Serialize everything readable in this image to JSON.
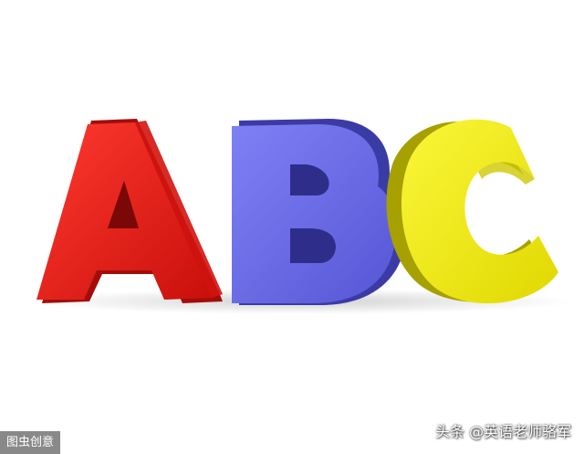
{
  "image": {
    "letters": [
      {
        "char": "A",
        "color": "#e31b16",
        "shade": "#a80f0c"
      },
      {
        "char": "B",
        "color": "#6a6ae6",
        "shade": "#3f3fb0"
      },
      {
        "char": "C",
        "color": "#f3ee10",
        "shade": "#b8b000"
      }
    ],
    "background_color": "#ffffff"
  },
  "watermark_left": "图虫创意",
  "watermark_right": "头条 @英语老师骆军"
}
